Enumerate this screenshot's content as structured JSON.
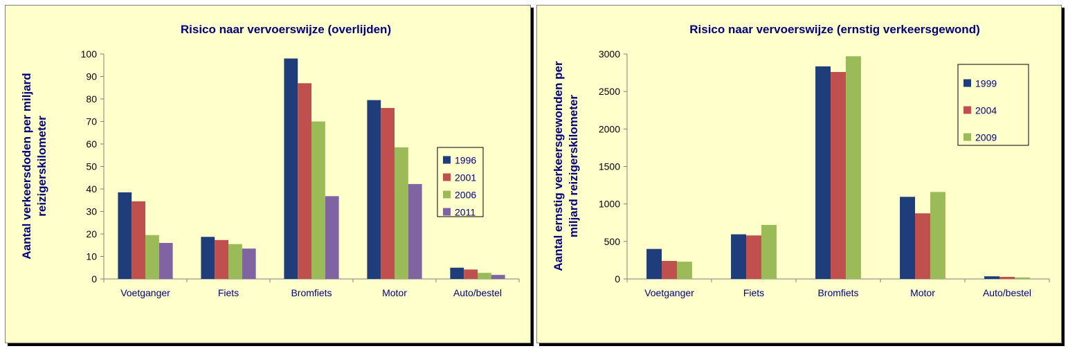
{
  "chart_data": [
    {
      "type": "bar",
      "title": "Risico naar vervoerswijze (overlijden)",
      "ylabel_lines": [
        "Aantal verkeersdoden per miljard",
        "reizigerskilometer"
      ],
      "xlabel": "",
      "ylim": [
        0,
        100
      ],
      "yticks": [
        0,
        10,
        20,
        30,
        40,
        50,
        60,
        70,
        80,
        90,
        100
      ],
      "categories": [
        "Voetganger",
        "Fiets",
        "Bromfiets",
        "Motor",
        "Auto/bestel"
      ],
      "series": [
        {
          "name": "1996",
          "color": "#1f3d7a",
          "values": [
            38.5,
            18.7,
            98,
            79.5,
            5
          ]
        },
        {
          "name": "2001",
          "color": "#c0504d",
          "values": [
            34.5,
            17.3,
            87,
            76,
            4.2
          ]
        },
        {
          "name": "2006",
          "color": "#9bbb59",
          "values": [
            19.5,
            15.5,
            70,
            58.5,
            2.7
          ]
        },
        {
          "name": "2011",
          "color": "#8064a2",
          "values": [
            16,
            13.5,
            36.8,
            42.2,
            1.8
          ]
        }
      ],
      "grid": false,
      "legend_position": "right"
    },
    {
      "type": "bar",
      "title": "Risico naar vervoerswijze (ernstig verkeersgewond)",
      "ylabel_lines": [
        "Aantal ernstig verkeersgewonden per",
        "miljard reizigerskilometer"
      ],
      "xlabel": "",
      "ylim": [
        0,
        3000
      ],
      "yticks": [
        0,
        500,
        1000,
        1500,
        2000,
        2500,
        3000
      ],
      "categories": [
        "Voetganger",
        "Fiets",
        "Bromfiets",
        "Motor",
        "Auto/bestel"
      ],
      "series": [
        {
          "name": "1999",
          "color": "#1f3d7a",
          "values": [
            400,
            595,
            2835,
            1095,
            35
          ]
        },
        {
          "name": "2004",
          "color": "#c0504d",
          "values": [
            240,
            580,
            2760,
            875,
            28
          ]
        },
        {
          "name": "2009",
          "color": "#9bbb59",
          "values": [
            230,
            720,
            2970,
            1160,
            20
          ]
        }
      ],
      "grid": false,
      "legend_position": "top-right"
    }
  ]
}
